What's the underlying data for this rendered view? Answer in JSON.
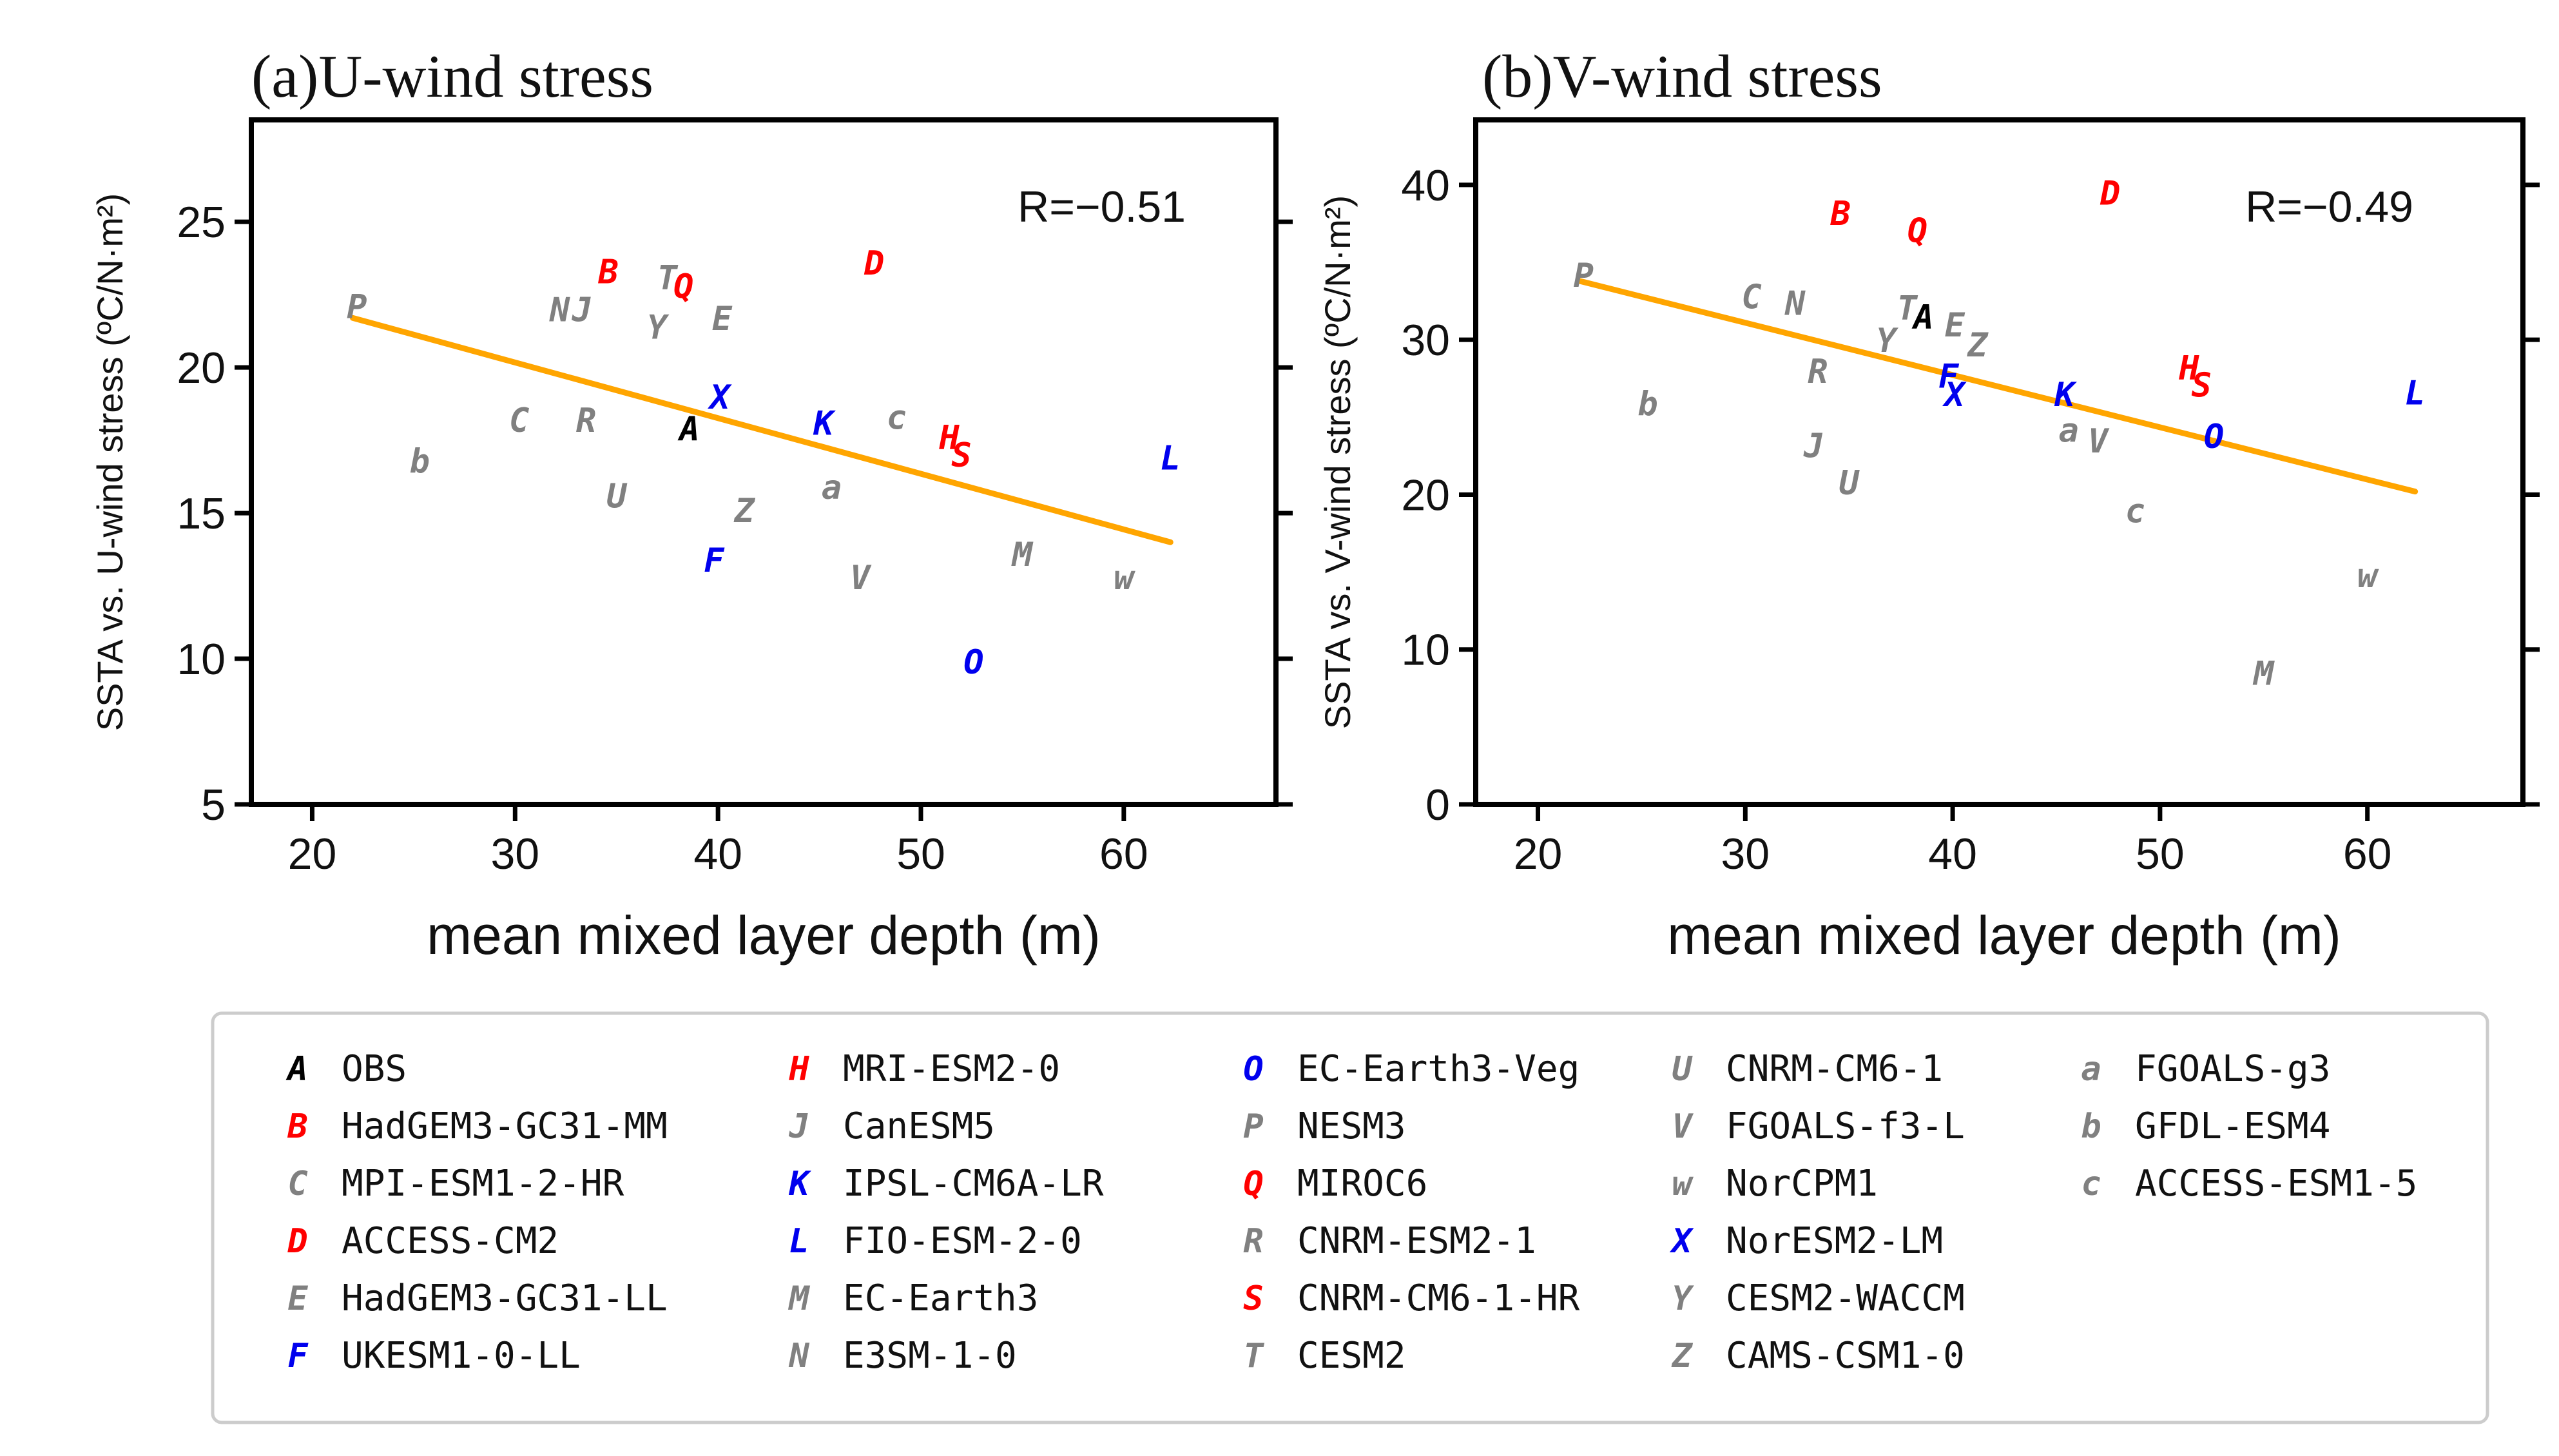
{
  "colors": {
    "black": "#000000",
    "red": "#ff0000",
    "blue": "#0000ee",
    "gray": "#808080",
    "fit": "#ffa500"
  },
  "models": [
    {
      "key": "A",
      "name": "OBS",
      "color": "black"
    },
    {
      "key": "B",
      "name": "HadGEM3-GC31-MM",
      "color": "red"
    },
    {
      "key": "C",
      "name": "MPI-ESM1-2-HR",
      "color": "gray"
    },
    {
      "key": "D",
      "name": "ACCESS-CM2",
      "color": "red"
    },
    {
      "key": "E",
      "name": "HadGEM3-GC31-LL",
      "color": "gray"
    },
    {
      "key": "F",
      "name": "UKESM1-0-LL",
      "color": "blue"
    },
    {
      "key": "H",
      "name": "MRI-ESM2-0",
      "color": "red"
    },
    {
      "key": "J",
      "name": "CanESM5",
      "color": "gray"
    },
    {
      "key": "K",
      "name": "IPSL-CM6A-LR",
      "color": "blue"
    },
    {
      "key": "L",
      "name": "FIO-ESM-2-0",
      "color": "blue"
    },
    {
      "key": "M",
      "name": "EC-Earth3",
      "color": "gray"
    },
    {
      "key": "N",
      "name": "E3SM-1-0",
      "color": "gray"
    },
    {
      "key": "O",
      "name": "EC-Earth3-Veg",
      "color": "blue"
    },
    {
      "key": "P",
      "name": "NESM3",
      "color": "gray"
    },
    {
      "key": "Q",
      "name": "MIROC6",
      "color": "red"
    },
    {
      "key": "R",
      "name": "CNRM-ESM2-1",
      "color": "gray"
    },
    {
      "key": "S",
      "name": "CNRM-CM6-1-HR",
      "color": "red"
    },
    {
      "key": "T",
      "name": "CESM2",
      "color": "gray"
    },
    {
      "key": "U",
      "name": "CNRM-CM6-1",
      "color": "gray"
    },
    {
      "key": "V",
      "name": "FGOALS-f3-L",
      "color": "gray"
    },
    {
      "key": "w",
      "name": "NorCPM1",
      "color": "gray"
    },
    {
      "key": "X",
      "name": "NorESM2-LM",
      "color": "blue"
    },
    {
      "key": "Y",
      "name": "CESM2-WACCM",
      "color": "gray"
    },
    {
      "key": "Z",
      "name": "CAMS-CSM1-0",
      "color": "gray"
    },
    {
      "key": "a",
      "name": "FGOALS-g3",
      "color": "gray"
    },
    {
      "key": "b",
      "name": "GFDL-ESM4",
      "color": "gray"
    },
    {
      "key": "c",
      "name": "ACCESS-ESM1-5",
      "color": "gray"
    }
  ],
  "chart_data": [
    {
      "type": "scatter",
      "title": "(a)U-wind stress",
      "xlabel": "mean mixed layer depth (m)",
      "ylabel": "SSTA vs. U-wind stress (ºC/N·m²)",
      "xlim": [
        17,
        67.5
      ],
      "ylim": [
        5,
        28.5
      ],
      "xticks": [
        20,
        30,
        40,
        50,
        60
      ],
      "yticks": [
        5,
        10,
        15,
        20,
        25
      ],
      "correlation": "R=−0.51",
      "fit_line": {
        "x": [
          22,
          62.3
        ],
        "y": [
          21.7,
          14.0
        ]
      },
      "points": [
        {
          "key": "P",
          "x": 22.2,
          "y": 22.0
        },
        {
          "key": "b",
          "x": 25.3,
          "y": 16.7
        },
        {
          "key": "C",
          "x": 30.2,
          "y": 18.1
        },
        {
          "key": "R",
          "x": 33.5,
          "y": 18.1
        },
        {
          "key": "N",
          "x": 32.2,
          "y": 21.9
        },
        {
          "key": "J",
          "x": 33.3,
          "y": 21.9
        },
        {
          "key": "B",
          "x": 34.6,
          "y": 23.2
        },
        {
          "key": "T",
          "x": 37.5,
          "y": 23.0
        },
        {
          "key": "Q",
          "x": 38.3,
          "y": 22.7
        },
        {
          "key": "Y",
          "x": 37.0,
          "y": 21.3
        },
        {
          "key": "E",
          "x": 40.2,
          "y": 21.6
        },
        {
          "key": "U",
          "x": 35.0,
          "y": 15.5
        },
        {
          "key": "A",
          "x": 38.6,
          "y": 17.8
        },
        {
          "key": "X",
          "x": 40.1,
          "y": 18.9
        },
        {
          "key": "F",
          "x": 39.8,
          "y": 13.3
        },
        {
          "key": "Z",
          "x": 41.3,
          "y": 15.0
        },
        {
          "key": "K",
          "x": 45.2,
          "y": 18.0
        },
        {
          "key": "a",
          "x": 45.6,
          "y": 15.8
        },
        {
          "key": "D",
          "x": 47.7,
          "y": 23.5
        },
        {
          "key": "c",
          "x": 48.8,
          "y": 18.2
        },
        {
          "key": "V",
          "x": 47.0,
          "y": 12.7
        },
        {
          "key": "H",
          "x": 51.4,
          "y": 17.5
        },
        {
          "key": "S",
          "x": 52.0,
          "y": 16.9
        },
        {
          "key": "O",
          "x": 52.6,
          "y": 9.8
        },
        {
          "key": "M",
          "x": 55.0,
          "y": 13.5
        },
        {
          "key": "w",
          "x": 60.0,
          "y": 12.7
        },
        {
          "key": "L",
          "x": 62.3,
          "y": 16.8
        }
      ]
    },
    {
      "type": "scatter",
      "title": "(b)V-wind stress",
      "xlabel": "mean mixed layer depth (m)",
      "ylabel": "SSTA vs. V-wind stress (ºC/N·m²)",
      "xlim": [
        17,
        67.5
      ],
      "ylim": [
        0,
        44.2
      ],
      "xticks": [
        20,
        30,
        40,
        50,
        60
      ],
      "yticks": [
        0,
        10,
        20,
        30,
        40
      ],
      "correlation": "R=−0.49",
      "fit_line": {
        "x": [
          22,
          62.3
        ],
        "y": [
          33.8,
          20.2
        ]
      },
      "points": [
        {
          "key": "P",
          "x": 22.2,
          "y": 34.0
        },
        {
          "key": "b",
          "x": 25.3,
          "y": 25.7
        },
        {
          "key": "C",
          "x": 30.3,
          "y": 32.6
        },
        {
          "key": "N",
          "x": 32.4,
          "y": 32.2
        },
        {
          "key": "R",
          "x": 33.5,
          "y": 27.8
        },
        {
          "key": "J",
          "x": 33.3,
          "y": 23.0
        },
        {
          "key": "U",
          "x": 35.0,
          "y": 20.6
        },
        {
          "key": "B",
          "x": 34.6,
          "y": 38.0
        },
        {
          "key": "Q",
          "x": 38.3,
          "y": 36.9
        },
        {
          "key": "T",
          "x": 37.8,
          "y": 31.9
        },
        {
          "key": "A",
          "x": 38.6,
          "y": 31.3
        },
        {
          "key": "Y",
          "x": 36.8,
          "y": 29.8
        },
        {
          "key": "E",
          "x": 40.1,
          "y": 30.8
        },
        {
          "key": "Z",
          "x": 41.2,
          "y": 29.5
        },
        {
          "key": "F",
          "x": 39.8,
          "y": 27.5
        },
        {
          "key": "X",
          "x": 40.1,
          "y": 26.3
        },
        {
          "key": "K",
          "x": 45.4,
          "y": 26.3
        },
        {
          "key": "a",
          "x": 45.6,
          "y": 24.0
        },
        {
          "key": "V",
          "x": 47.0,
          "y": 23.3
        },
        {
          "key": "D",
          "x": 47.6,
          "y": 39.3
        },
        {
          "key": "c",
          "x": 48.8,
          "y": 18.8
        },
        {
          "key": "H",
          "x": 51.4,
          "y": 28.0
        },
        {
          "key": "S",
          "x": 52.0,
          "y": 26.9
        },
        {
          "key": "O",
          "x": 52.6,
          "y": 23.6
        },
        {
          "key": "M",
          "x": 55.0,
          "y": 8.3
        },
        {
          "key": "w",
          "x": 60.0,
          "y": 14.6
        },
        {
          "key": "L",
          "x": 62.3,
          "y": 26.4
        }
      ]
    }
  ]
}
